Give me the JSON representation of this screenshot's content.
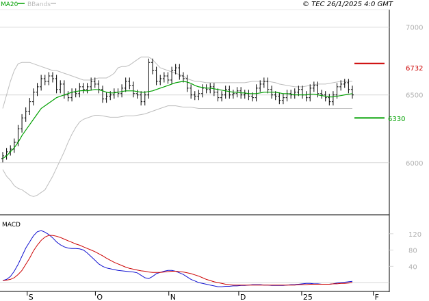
{
  "header": {
    "legend_ma": "MA20",
    "legend_bb": "BBands",
    "copyright": "© TEC 26/1/2025 4:0 GMT",
    "ma_color": "#00a000",
    "bb_color": "#bdbdbd"
  },
  "price_panel": {
    "y_ticks": [
      "7000",
      "6500",
      "6000"
    ],
    "resistance_label": "6732",
    "support_label": "6330",
    "resistance_color": "#cc0000",
    "support_color": "#00a000"
  },
  "macd_panel": {
    "title": "MACD",
    "y_ticks": [
      "120",
      "80",
      "40"
    ],
    "macd_color": "#1010d0",
    "signal_color": "#cc0000"
  },
  "x_axis": {
    "labels": [
      "S",
      "O",
      "N",
      "D",
      "25",
      "F"
    ]
  },
  "chart_data": [
    {
      "type": "line",
      "title": "",
      "ylim": [
        5620,
        7130
      ],
      "y_ticks": [
        7000,
        6500,
        6000
      ],
      "x_labels": [
        "S",
        "O",
        "N",
        "D",
        "25",
        "F"
      ],
      "levels": {
        "resistance": 6732,
        "support": 6330
      },
      "close": [
        6050,
        6080,
        6100,
        6150,
        6250,
        6330,
        6380,
        6450,
        6520,
        6560,
        6620,
        6600,
        6640,
        6620,
        6540,
        6580,
        6500,
        6480,
        6520,
        6510,
        6560,
        6540,
        6560,
        6600,
        6580,
        6540,
        6470,
        6490,
        6500,
        6520,
        6510,
        6550,
        6600,
        6570,
        6510,
        6500,
        6450,
        6500,
        6740,
        6680,
        6600,
        6620,
        6640,
        6610,
        6680,
        6700,
        6640,
        6620,
        6550,
        6500,
        6490,
        6510,
        6550,
        6540,
        6560,
        6520,
        6480,
        6500,
        6540,
        6500,
        6510,
        6530,
        6500,
        6510,
        6490,
        6480,
        6550,
        6580,
        6600,
        6540,
        6500,
        6490,
        6460,
        6480,
        6510,
        6500,
        6520,
        6540,
        6500,
        6480,
        6550,
        6570,
        6510,
        6500,
        6480,
        6450,
        6500,
        6560,
        6580,
        6590,
        6540,
        6500
      ],
      "series": [
        {
          "name": "MA20",
          "values": [
            6030,
            6050,
            6080,
            6110,
            6150,
            6200,
            6240,
            6280,
            6320,
            6360,
            6400,
            6420,
            6440,
            6460,
            6480,
            6490,
            6500,
            6510,
            6520,
            6525,
            6530,
            6532,
            6530,
            6535,
            6540,
            6538,
            6530,
            6520,
            6515,
            6515,
            6520,
            6525,
            6530,
            6530,
            6530,
            6525,
            6520,
            6520,
            6525,
            6530,
            6540,
            6550,
            6560,
            6570,
            6580,
            6590,
            6595,
            6600,
            6595,
            6585,
            6570,
            6560,
            6555,
            6550,
            6550,
            6545,
            6540,
            6535,
            6530,
            6525,
            6520,
            6520,
            6515,
            6515,
            6510,
            6510,
            6510,
            6515,
            6520,
            6520,
            6520,
            6520,
            6515,
            6510,
            6510,
            6505,
            6500,
            6500,
            6500,
            6500,
            6505,
            6505,
            6500,
            6495,
            6490,
            6485,
            6485,
            6490,
            6495,
            6500,
            6505,
            6510
          ]
        },
        {
          "name": "BB upper",
          "values": [
            6400,
            6500,
            6600,
            6680,
            6730,
            6740,
            6740,
            6740,
            6730,
            6720,
            6710,
            6700,
            6690,
            6680,
            6680,
            6670,
            6660,
            6650,
            6640,
            6630,
            6620,
            6610,
            6610,
            6610,
            6620,
            6625,
            6625,
            6625,
            6640,
            6660,
            6700,
            6710,
            6710,
            6720,
            6740,
            6760,
            6780,
            6780,
            6780,
            6760,
            6730,
            6700,
            6690,
            6680,
            6670,
            6660,
            6650,
            6640,
            6620,
            6610,
            6600,
            6600,
            6595,
            6590,
            6590,
            6590,
            6590,
            6590,
            6590,
            6590,
            6590,
            6590,
            6590,
            6590,
            6595,
            6600,
            6600,
            6600,
            6600,
            6600,
            6595,
            6590,
            6580,
            6575,
            6570,
            6565,
            6560,
            6560,
            6560,
            6565,
            6570,
            6575,
            6580,
            6580,
            6580,
            6585,
            6590,
            6595,
            6600,
            6600,
            6600,
            6600
          ]
        },
        {
          "name": "BB lower",
          "values": [
            5950,
            5900,
            5870,
            5830,
            5810,
            5800,
            5780,
            5760,
            5750,
            5760,
            5780,
            5800,
            5850,
            5900,
            5960,
            6020,
            6080,
            6150,
            6210,
            6260,
            6300,
            6320,
            6330,
            6340,
            6350,
            6350,
            6345,
            6340,
            6335,
            6335,
            6335,
            6340,
            6345,
            6345,
            6345,
            6350,
            6355,
            6360,
            6370,
            6380,
            6390,
            6400,
            6410,
            6420,
            6420,
            6420,
            6415,
            6410,
            6410,
            6410,
            6405,
            6400,
            6400,
            6400,
            6400,
            6400,
            6400,
            6400,
            6400,
            6400,
            6400,
            6400,
            6400,
            6400,
            6400,
            6400,
            6400,
            6400,
            6400,
            6400,
            6400,
            6400,
            6400,
            6400,
            6400,
            6400,
            6400,
            6400,
            6400,
            6400,
            6400,
            6400,
            6400,
            6400,
            6400,
            6400,
            6400,
            6400,
            6400,
            6400,
            6400,
            6400
          ]
        }
      ]
    },
    {
      "type": "line",
      "title": "MACD",
      "ylim": [
        -20,
        165
      ],
      "y_ticks": [
        120,
        80,
        40
      ],
      "series": [
        {
          "name": "MACD",
          "values": [
            5,
            8,
            15,
            28,
            45,
            65,
            85,
            100,
            115,
            125,
            128,
            124,
            118,
            110,
            100,
            93,
            88,
            85,
            84,
            84,
            83,
            80,
            73,
            64,
            55,
            46,
            40,
            36,
            34,
            32,
            30,
            29,
            28,
            27,
            26,
            24,
            18,
            12,
            10,
            15,
            22,
            25,
            28,
            30,
            30,
            28,
            24,
            20,
            14,
            8,
            4,
            0,
            -2,
            -4,
            -6,
            -8,
            -10,
            -10,
            -9,
            -9,
            -8,
            -8,
            -7,
            -7,
            -6,
            -5,
            -5,
            -5,
            -6,
            -6,
            -7,
            -7,
            -7,
            -7,
            -6,
            -5,
            -5,
            -4,
            -3,
            -2,
            -2,
            -3,
            -3,
            -4,
            -4,
            -4,
            -3,
            -1,
            0,
            1,
            2,
            3
          ]
        },
        {
          "name": "Signal",
          "values": [
            5,
            6,
            8,
            12,
            20,
            30,
            45,
            60,
            78,
            92,
            104,
            112,
            116,
            116,
            114,
            111,
            107,
            103,
            99,
            95,
            92,
            88,
            84,
            80,
            76,
            71,
            66,
            60,
            55,
            50,
            46,
            42,
            38,
            35,
            33,
            31,
            29,
            28,
            26,
            25,
            25,
            25,
            26,
            27,
            28,
            28,
            27,
            26,
            24,
            22,
            19,
            16,
            12,
            8,
            5,
            2,
            0,
            -2,
            -4,
            -5,
            -6,
            -6,
            -6,
            -6,
            -6,
            -6,
            -6,
            -6,
            -6,
            -6,
            -6,
            -6,
            -6,
            -6,
            -6,
            -6,
            -6,
            -5,
            -5,
            -5,
            -4,
            -4,
            -4,
            -4,
            -4,
            -4,
            -3,
            -3,
            -2,
            -2,
            -1,
            0
          ]
        }
      ]
    }
  ]
}
